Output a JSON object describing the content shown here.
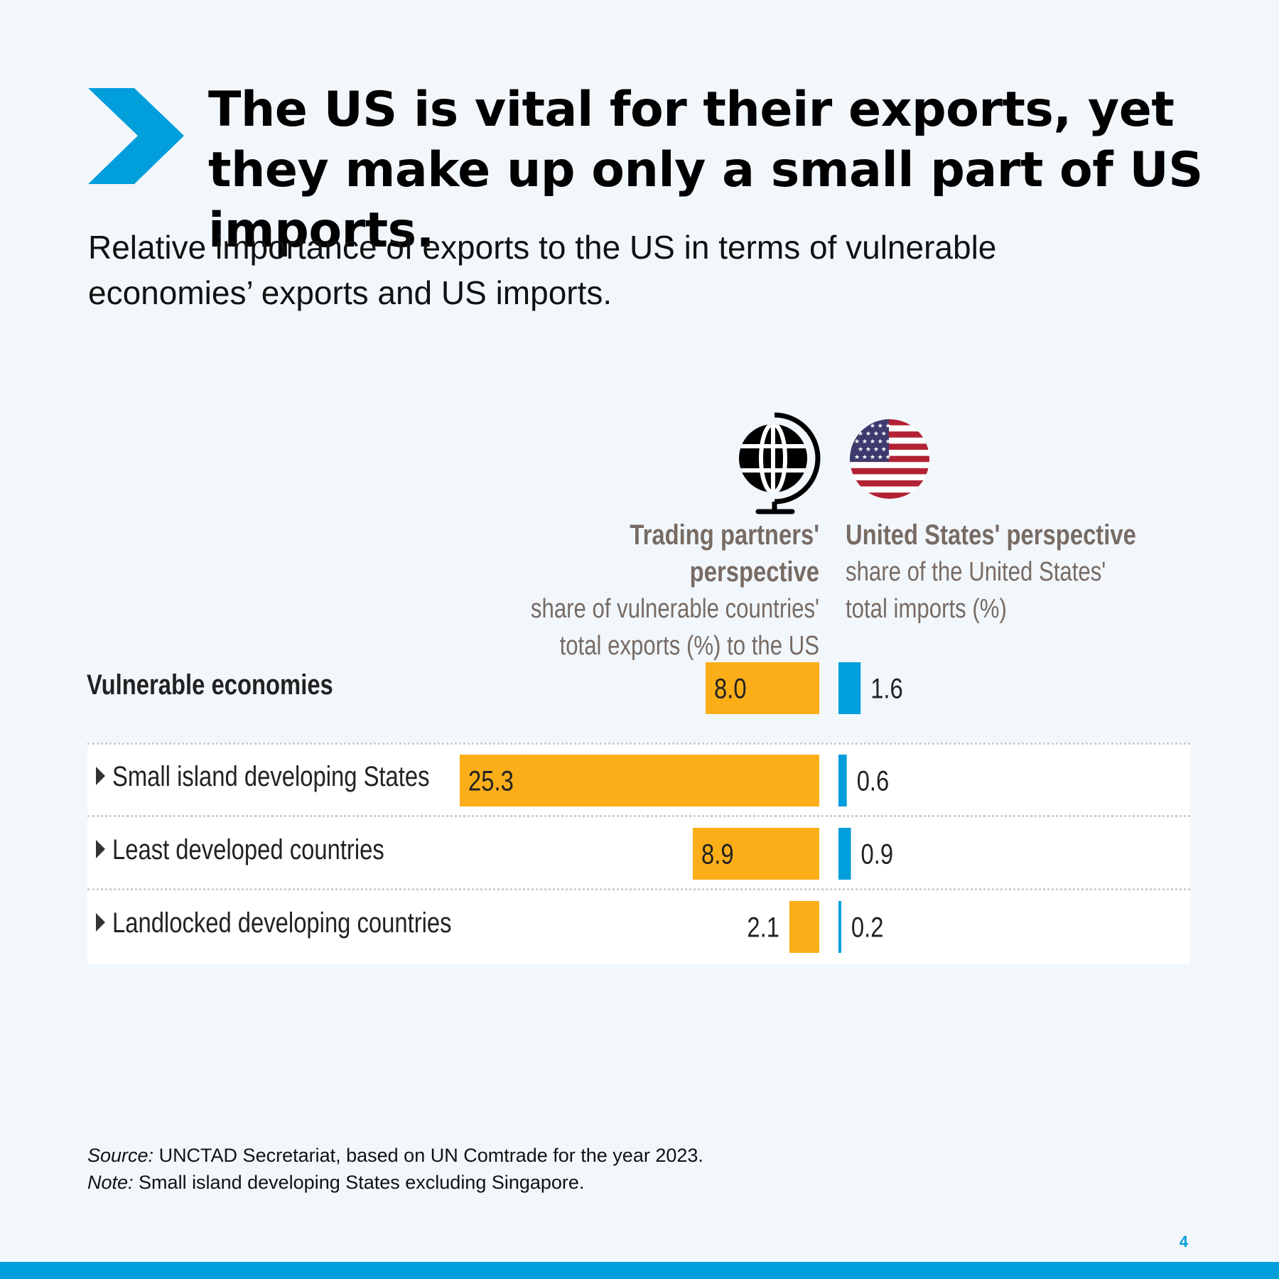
{
  "headline": "The US is vital for their exports, yet they make up only a small part of US imports.",
  "subtitle": "Relative importance of exports to the US in terms of vulnerable economies’ exports and US imports.",
  "columns": {
    "left": {
      "title": "Trading partners' perspective",
      "subtitle_line1": "share of vulnerable countries'",
      "subtitle_line2": "total exports (%) to the US",
      "icon": "globe-icon"
    },
    "right": {
      "title": "United States' perspective",
      "subtitle_line1": "share of the United States'",
      "subtitle_line2": "total imports (%)",
      "icon": "us-flag-icon"
    }
  },
  "chart_data": {
    "type": "bar",
    "orientation": "horizontal",
    "categories": [
      "Vulnerable economies",
      "Small island developing States",
      "Least developed countries",
      "Landlocked developing countries"
    ],
    "series": [
      {
        "name": "Trading partners' perspective",
        "values": [
          8.0,
          25.3,
          8.9,
          2.1
        ],
        "labels": [
          "8.0",
          "25.3",
          "8.9",
          "2.1"
        ],
        "color": "#fbae18"
      },
      {
        "name": "United States' perspective",
        "values": [
          1.6,
          0.6,
          0.9,
          0.2
        ],
        "labels": [
          "1.6",
          "0.6",
          "0.9",
          "0.2"
        ],
        "color": "#009edb"
      }
    ]
  },
  "footer": {
    "source_label": "Source:",
    "source_text": " UNCTAD Secretariat, based on UN Comtrade for the year 2023.",
    "note_label": "Note:",
    "note_text": " Small island developing States excluding Singapore."
  },
  "page_number": "4",
  "colors": {
    "accent": "#009edb",
    "bar_exports": "#fbae18",
    "bar_imports": "#009edb",
    "header_text": "#776b63",
    "background": "#f2f7fc"
  }
}
